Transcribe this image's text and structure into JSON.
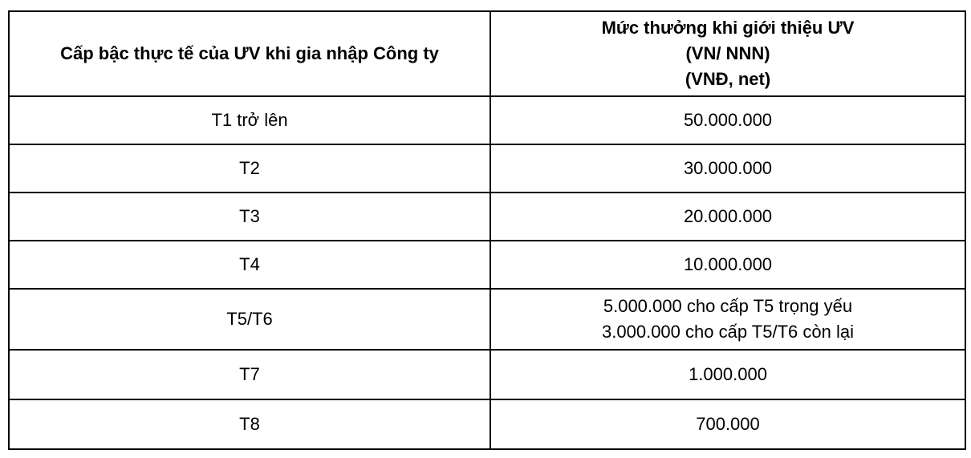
{
  "table": {
    "headers": {
      "level_column": "Cấp bậc thực tế của ƯV khi gia nhập Công ty",
      "reward_column_lines": [
        "Mức thưởng khi giới thiệu ƯV",
        "(VN/ NNN)",
        "(VNĐ, net)"
      ]
    },
    "rows": [
      {
        "level": "T1 trở lên",
        "reward": [
          "50.000.000"
        ]
      },
      {
        "level": "T2",
        "reward": [
          "30.000.000"
        ]
      },
      {
        "level": "T3",
        "reward": [
          "20.000.000"
        ]
      },
      {
        "level": "T4",
        "reward": [
          "10.000.000"
        ]
      },
      {
        "level": "T5/T6",
        "reward": [
          "5.000.000 cho cấp T5 trọng yếu",
          "3.000.000 cho cấp T5/T6 còn lại"
        ]
      },
      {
        "level": "T7",
        "reward": [
          "1.000.000"
        ]
      },
      {
        "level": "T8",
        "reward": [
          "700.000"
        ]
      }
    ]
  }
}
